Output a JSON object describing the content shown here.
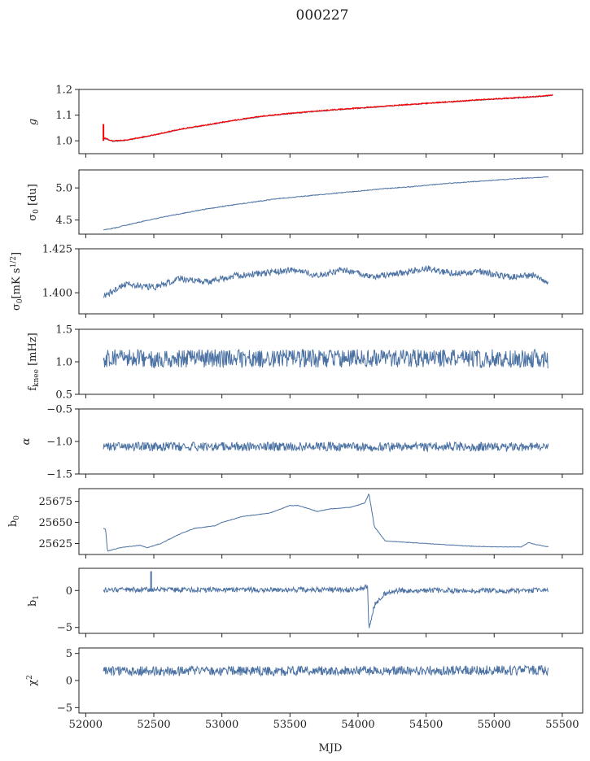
{
  "figure": {
    "title": "000227"
  },
  "chart_data": [
    {
      "type": "line",
      "ylabel": "g",
      "ylim": [
        0.95,
        1.2
      ],
      "yticks": [
        1.0,
        1.1,
        1.2
      ],
      "yticklabels": [
        "1.0",
        "1.1",
        "1.2"
      ],
      "x": [
        52130,
        52200,
        52300,
        52500,
        52700,
        52900,
        53100,
        53300,
        53500,
        53700,
        53900,
        54100,
        54300,
        54500,
        54700,
        54900,
        55100,
        55300,
        55430
      ],
      "series": [
        {
          "color": "#4c72a3",
          "noise": 0.002,
          "values": [
            1.01,
            0.998,
            1.002,
            1.022,
            1.045,
            1.062,
            1.08,
            1.095,
            1.106,
            1.115,
            1.123,
            1.13,
            1.138,
            1.145,
            1.152,
            1.159,
            1.165,
            1.171,
            1.176
          ]
        },
        {
          "color": "#ff0000",
          "noise": 0.002,
          "values": [
            1.012,
            0.999,
            1.003,
            1.023,
            1.046,
            1.063,
            1.081,
            1.096,
            1.107,
            1.116,
            1.124,
            1.131,
            1.139,
            1.146,
            1.153,
            1.16,
            1.166,
            1.172,
            1.178
          ]
        }
      ],
      "spike": {
        "x": 52130,
        "values": [
          1.0,
          1.065
        ]
      }
    },
    {
      "type": "line",
      "ylabel": "σ0 [du]",
      "ylim": [
        4.28,
        5.28
      ],
      "yticks": [
        4.5,
        5.0
      ],
      "yticklabels": [
        "4.5",
        "5.0"
      ],
      "x": [
        52130,
        52200,
        52400,
        52600,
        52800,
        53000,
        53200,
        53400,
        53600,
        53800,
        54000,
        54200,
        54400,
        54600,
        54800,
        55000,
        55200,
        55400
      ],
      "series": [
        {
          "color": "#4c72a3",
          "noise": 0.006,
          "values": [
            4.35,
            4.37,
            4.47,
            4.56,
            4.64,
            4.71,
            4.77,
            4.83,
            4.87,
            4.91,
            4.95,
            4.99,
            5.02,
            5.06,
            5.09,
            5.12,
            5.15,
            5.17
          ]
        }
      ]
    },
    {
      "type": "line",
      "ylabel": "σ0[mK s1/2]",
      "ylim": [
        1.388,
        1.425
      ],
      "yticks": [
        1.4,
        1.425
      ],
      "yticklabels": [
        "1.400",
        "1.425"
      ],
      "x": [
        52130,
        52300,
        52500,
        52700,
        52900,
        53100,
        53300,
        53500,
        53700,
        53900,
        54100,
        54300,
        54500,
        54700,
        54900,
        55100,
        55300,
        55400
      ],
      "series": [
        {
          "color": "#4c72a3",
          "noise": 0.0018,
          "values": [
            1.398,
            1.405,
            1.403,
            1.408,
            1.406,
            1.41,
            1.411,
            1.413,
            1.41,
            1.413,
            1.409,
            1.411,
            1.414,
            1.411,
            1.412,
            1.409,
            1.41,
            1.405
          ]
        }
      ]
    },
    {
      "type": "line",
      "ylabel": "fknee [mHz]",
      "ylim": [
        0.5,
        1.5
      ],
      "yticks": [
        0.5,
        1.0,
        1.5
      ],
      "yticklabels": [
        "0.5",
        "1.0",
        "1.5"
      ],
      "x": [
        52130,
        55400
      ],
      "series": [
        {
          "color": "#4c72a3",
          "noise": 0.14,
          "values": [
            1.05,
            1.05
          ]
        }
      ]
    },
    {
      "type": "line",
      "ylabel": "α",
      "ylim": [
        -1.5,
        -0.5
      ],
      "yticks": [
        -1.5,
        -1.0,
        -0.5
      ],
      "yticklabels": [
        "−1.5",
        "−1.0",
        "−0.5"
      ],
      "x": [
        52130,
        55400
      ],
      "series": [
        {
          "color": "#4c72a3",
          "noise": 0.07,
          "values": [
            -1.08,
            -1.08
          ]
        }
      ]
    },
    {
      "type": "line",
      "ylabel": "b0",
      "ylim": [
        25612,
        25690
      ],
      "yticks": [
        25625,
        25650,
        25675
      ],
      "yticklabels": [
        "25625",
        "25650",
        "25675"
      ],
      "x": [
        52130,
        52145,
        52160,
        52250,
        52400,
        52450,
        52550,
        52700,
        52800,
        52950,
        53000,
        53150,
        53350,
        53500,
        53560,
        53700,
        53800,
        53950,
        54050,
        54080,
        54120,
        54200,
        54400,
        54600,
        54800,
        55000,
        55200,
        55250,
        55300,
        55400
      ],
      "series": [
        {
          "color": "#4c72a3",
          "noise": 0.3,
          "values": [
            25643,
            25642,
            25616,
            25620,
            25623,
            25620,
            25625,
            25637,
            25643,
            25646,
            25650,
            25657,
            25661,
            25670,
            25670,
            25663,
            25666,
            25668,
            25673,
            25684,
            25645,
            25628,
            25626,
            25624,
            25622,
            25621,
            25621,
            25626,
            25624,
            25621
          ]
        }
      ]
    },
    {
      "type": "line",
      "ylabel": "b1",
      "ylim": [
        -5.8,
        3.0
      ],
      "yticks": [
        -5,
        0
      ],
      "yticklabels": [
        "−5",
        "0"
      ],
      "x": [
        52130,
        54000,
        54070,
        54080,
        54120,
        54200,
        54300,
        55400
      ],
      "series": [
        {
          "color": "#4c72a3",
          "noise": 0.35,
          "values": [
            0.1,
            0.1,
            0.5,
            -5.2,
            -2.0,
            -0.4,
            0.0,
            0.0
          ]
        }
      ],
      "spike": {
        "x": 52480,
        "values": [
          0.0,
          2.6
        ]
      }
    },
    {
      "type": "line",
      "ylabel": "χ2",
      "ylim": [
        -6,
        6
      ],
      "yticks": [
        -5,
        0,
        5
      ],
      "yticklabels": [
        "−5",
        "0",
        "5"
      ],
      "x": [
        52130,
        55400
      ],
      "series": [
        {
          "color": "#4c72a3",
          "noise": 0.9,
          "values": [
            1.7,
            1.9
          ]
        }
      ]
    }
  ],
  "shared": {
    "xlim": [
      51950,
      55650
    ],
    "xticks": [
      52000,
      52500,
      53000,
      53500,
      54000,
      54500,
      55000,
      55500
    ],
    "xticklabels": [
      "52000",
      "52500",
      "53000",
      "53500",
      "54000",
      "54500",
      "55000",
      "55500"
    ],
    "xlabel": "MJD"
  }
}
